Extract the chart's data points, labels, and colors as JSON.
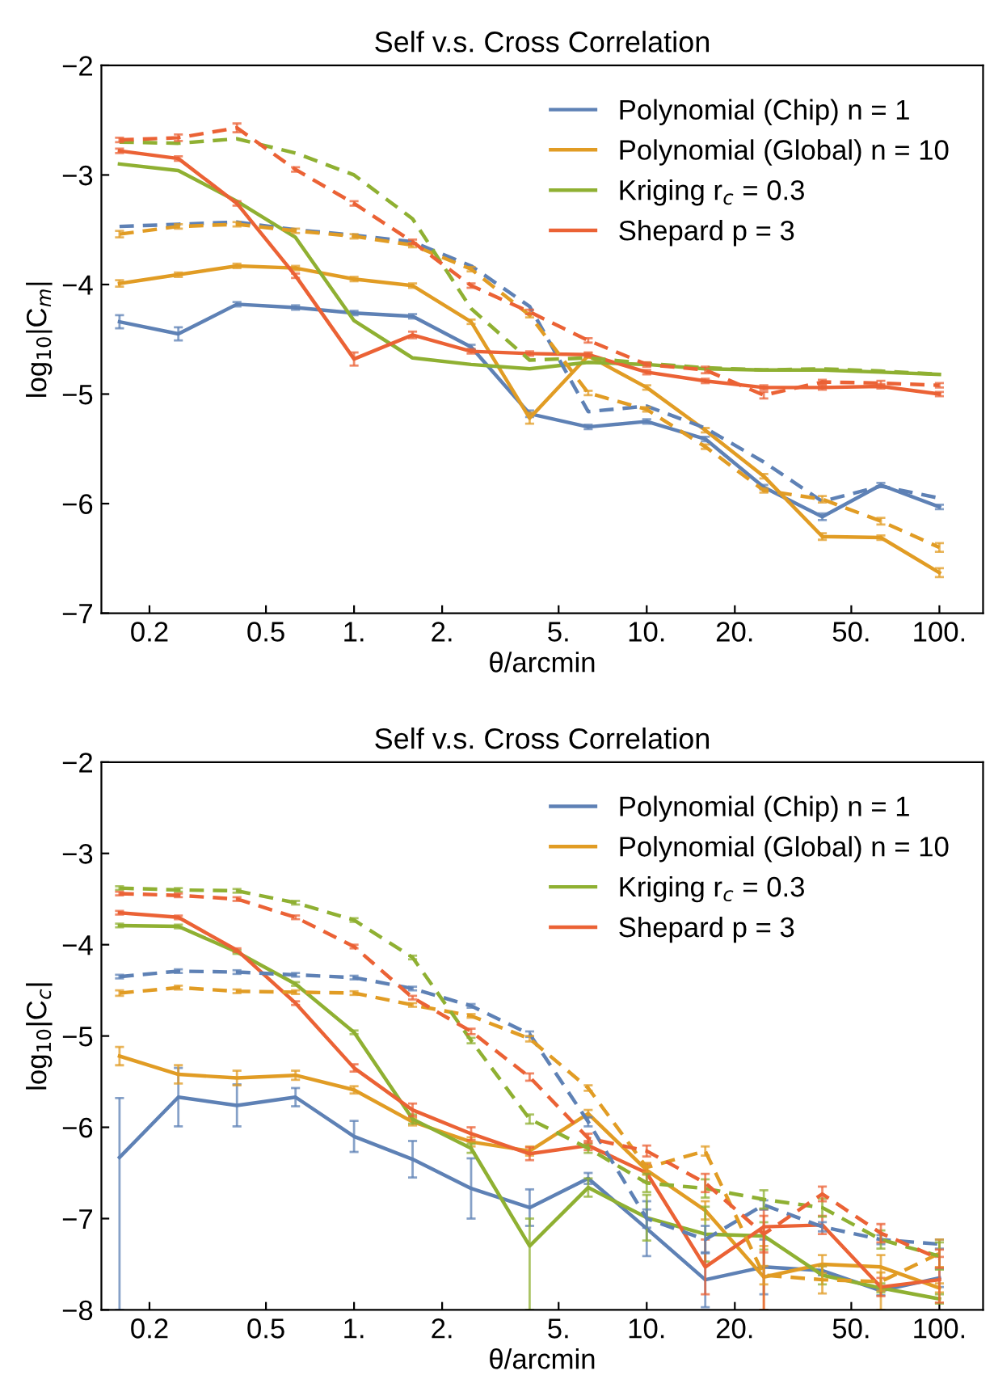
{
  "chart_data": [
    {
      "type": "line",
      "title": "Self v.s. Cross Correlation",
      "xlabel": "θ/arcmin",
      "ylabel": "log$_{10}$|C$_{m}$|",
      "x": [
        0.158,
        0.251,
        0.398,
        0.631,
        1,
        1.585,
        2.512,
        3.981,
        6.31,
        10,
        15.85,
        25.12,
        39.81,
        63.1,
        100
      ],
      "log": "x",
      "xlim": [
        0.137,
        141
      ],
      "ylim": [
        -7,
        -2
      ],
      "xticks": [
        {
          "value": 0.2,
          "label": "0.2"
        },
        {
          "value": 0.5,
          "label": "0.5"
        },
        {
          "value": 1,
          "label": "1."
        },
        {
          "value": 2,
          "label": "2."
        },
        {
          "value": 5,
          "label": "5."
        },
        {
          "value": 10,
          "label": "10."
        },
        {
          "value": 20,
          "label": "20."
        },
        {
          "value": 50,
          "label": "50."
        },
        {
          "value": 100,
          "label": "100."
        }
      ],
      "yticks": [
        {
          "value": -7,
          "label": "−7"
        },
        {
          "value": -6,
          "label": "−6"
        },
        {
          "value": -5,
          "label": "−5"
        },
        {
          "value": -4,
          "label": "−4"
        },
        {
          "value": -3,
          "label": "−3"
        },
        {
          "value": -2,
          "label": "−2"
        }
      ],
      "legend": "top right",
      "grid": false,
      "series": [
        {
          "name": "Polynomial (Chip) n = 1",
          "color": "#5e81b5",
          "line_style": "solid",
          "values": [
            -4.34,
            -4.45,
            -4.18,
            -4.21,
            -4.26,
            -4.29,
            -4.57,
            -5.18,
            -5.3,
            -5.25,
            -5.41,
            -5.85,
            -6.12,
            -5.83,
            -6.03
          ],
          "errors": [
            0.06,
            0.06,
            0.02,
            0.02,
            0.02,
            0.02,
            0.02,
            0.03,
            0.02,
            0.02,
            0.02,
            0.02,
            0.03,
            0.02,
            0.02
          ]
        },
        {
          "name": "Polynomial (Global) n = 10",
          "color": "#e19c24",
          "line_style": "solid",
          "values": [
            -3.99,
            -3.91,
            -3.83,
            -3.85,
            -3.95,
            -4.01,
            -4.34,
            -5.22,
            -4.65,
            -4.94,
            -5.33,
            -5.75,
            -6.3,
            -6.31,
            -6.63
          ],
          "errors": [
            0.03,
            0.02,
            0.02,
            0.02,
            0.02,
            0.02,
            0.02,
            0.05,
            0.02,
            0.02,
            0.02,
            0.02,
            0.03,
            0.02,
            0.04
          ]
        },
        {
          "name": "Kriging r$_{c}$ = 0.3",
          "color": "#8fb032",
          "line_style": "solid",
          "values": [
            -2.9,
            -2.96,
            -3.24,
            -3.57,
            -4.33,
            -4.67,
            -4.73,
            -4.77,
            -4.71,
            -4.73,
            -4.77,
            -4.78,
            -4.78,
            -4.8,
            -4.82
          ]
        },
        {
          "name": "Shepard p = 3",
          "color": "#eb6235",
          "line_style": "solid",
          "values": [
            -2.78,
            -2.85,
            -3.26,
            -3.92,
            -4.68,
            -4.46,
            -4.61,
            -4.63,
            -4.64,
            -4.8,
            -4.88,
            -4.94,
            -4.94,
            -4.93,
            -5.0
          ],
          "errors": [
            0.02,
            0.02,
            0.02,
            0.02,
            0.06,
            0.03,
            0.02,
            0.02,
            0.02,
            0.02,
            0.02,
            0.02,
            0.02,
            0.02,
            0.02
          ]
        },
        {
          "color": "#5e81b5",
          "line_style": "dashed",
          "values": [
            -3.47,
            -3.45,
            -3.43,
            -3.5,
            -3.55,
            -3.61,
            -3.83,
            -4.2,
            -5.16,
            -5.11,
            -5.31,
            -5.62,
            -5.98,
            -5.84,
            -5.95
          ]
        },
        {
          "color": "#e19c24",
          "line_style": "dashed",
          "values": [
            -3.54,
            -3.47,
            -3.45,
            -3.51,
            -3.56,
            -3.64,
            -3.86,
            -4.28,
            -4.99,
            -5.14,
            -5.48,
            -5.88,
            -5.96,
            -6.16,
            -6.4
          ],
          "errors": [
            0.03,
            0.02,
            0.02,
            0.02,
            0.02,
            0.02,
            0.02,
            0.02,
            0.02,
            0.02,
            0.02,
            0.02,
            0.03,
            0.03,
            0.04
          ]
        },
        {
          "color": "#8fb032",
          "line_style": "dashed",
          "values": [
            -2.7,
            -2.71,
            -2.67,
            -2.8,
            -3.0,
            -3.4,
            -4.22,
            -4.69,
            -4.67,
            -4.72,
            -4.76,
            -4.78,
            -4.77,
            -4.79,
            -4.82
          ]
        },
        {
          "color": "#eb6235",
          "line_style": "dashed",
          "values": [
            -2.68,
            -2.66,
            -2.57,
            -2.95,
            -3.26,
            -3.61,
            -4.01,
            -4.25,
            -4.51,
            -4.73,
            -4.78,
            -5.01,
            -4.89,
            -4.9,
            -4.92
          ],
          "errors": [
            0.02,
            0.03,
            0.04,
            0.02,
            0.02,
            0.02,
            0.02,
            0.02,
            0.02,
            0.02,
            0.03,
            0.03,
            0.02,
            0.02,
            0.02
          ]
        }
      ]
    },
    {
      "type": "line",
      "title": "Self v.s. Cross Correlation",
      "xlabel": "θ/arcmin",
      "ylabel": "log$_{10}$|C$_{c}$|",
      "x": [
        0.158,
        0.251,
        0.398,
        0.631,
        1,
        1.585,
        2.512,
        3.981,
        6.31,
        10,
        15.85,
        25.12,
        39.81,
        63.1,
        100
      ],
      "log": "x",
      "xlim": [
        0.137,
        141
      ],
      "ylim": [
        -8,
        -2
      ],
      "xticks": [
        {
          "value": 0.2,
          "label": "0.2"
        },
        {
          "value": 0.5,
          "label": "0.5"
        },
        {
          "value": 1,
          "label": "1."
        },
        {
          "value": 2,
          "label": "2."
        },
        {
          "value": 5,
          "label": "5."
        },
        {
          "value": 10,
          "label": "10."
        },
        {
          "value": 20,
          "label": "20."
        },
        {
          "value": 50,
          "label": "50."
        },
        {
          "value": 100,
          "label": "100."
        }
      ],
      "yticks": [
        {
          "value": -8,
          "label": "−8"
        },
        {
          "value": -7,
          "label": "−7"
        },
        {
          "value": -6,
          "label": "−6"
        },
        {
          "value": -5,
          "label": "−5"
        },
        {
          "value": -4,
          "label": "−4"
        },
        {
          "value": -3,
          "label": "−3"
        },
        {
          "value": -2,
          "label": "−2"
        }
      ],
      "legend": "top right",
      "grid": false,
      "series": [
        {
          "name": "Polynomial (Chip) n = 1",
          "color": "#5e81b5",
          "line_style": "solid",
          "values": [
            -6.33,
            -5.67,
            -5.76,
            -5.67,
            -6.1,
            -6.35,
            -6.67,
            -6.88,
            -6.56,
            -7.11,
            -7.67,
            -7.53,
            -7.57,
            -7.79,
            -7.65
          ],
          "errors": [
            [
              -8,
              -5.68
            ],
            0.32,
            0.23,
            0.1,
            0.17,
            0.2,
            0.33,
            0.2,
            0.06,
            0.3,
            0.3,
            0.3,
            0.05,
            0.05,
            0.1
          ]
        },
        {
          "name": "Polynomial (Global) n = 10",
          "color": "#e19c24",
          "line_style": "solid",
          "values": [
            -5.22,
            -5.42,
            -5.46,
            -5.43,
            -5.59,
            -5.94,
            -6.16,
            -6.26,
            -5.85,
            -6.47,
            -6.91,
            -7.64,
            -7.5,
            -7.53,
            -7.76
          ],
          "errors": [
            0.1,
            0.1,
            0.08,
            0.05,
            0.04,
            0.04,
            0.05,
            0.05,
            0.04,
            0.05,
            0.1,
            [
              -8,
              -7.3
            ],
            0.1,
            [
              -8,
              -7.4
            ],
            0.05
          ]
        },
        {
          "name": "Kriging r$_{c}$ = 0.3",
          "color": "#8fb032",
          "line_style": "solid",
          "values": [
            -3.79,
            -3.8,
            -4.08,
            -4.43,
            -4.96,
            -5.91,
            -6.23,
            -7.3,
            -6.66,
            -6.99,
            -7.17,
            -7.19,
            -7.62,
            -7.76,
            -7.88
          ],
          "errors": [
            0.02,
            0.02,
            0.02,
            0.02,
            0.02,
            0.05,
            0.05,
            [
              -8,
              -7.0
            ],
            0.1,
            0.25,
            0.3,
            0.15,
            0.1,
            0.05,
            0.05
          ]
        },
        {
          "name": "Shepard p = 3",
          "color": "#eb6235",
          "line_style": "solid",
          "values": [
            -3.65,
            -3.7,
            -4.06,
            -4.64,
            -5.35,
            -5.81,
            -6.07,
            -6.29,
            -6.2,
            -6.5,
            -7.53,
            -7.09,
            -7.07,
            -7.75,
            -7.67
          ],
          "errors": [
            0.02,
            0.02,
            0.02,
            0.02,
            0.04,
            0.07,
            0.07,
            0.07,
            0.05,
            0.1,
            0.3,
            [
              -8,
              -6.9
            ],
            0.1,
            0.1,
            0.25
          ]
        },
        {
          "color": "#5e81b5",
          "line_style": "dashed",
          "values": [
            -4.35,
            -4.29,
            -4.3,
            -4.33,
            -4.36,
            -4.48,
            -4.67,
            -4.98,
            -5.94,
            -7.0,
            -7.23,
            -6.85,
            -7.09,
            -7.23,
            -7.28
          ],
          "errors": [
            0.02,
            0.02,
            0.02,
            0.02,
            0.02,
            0.02,
            0.02,
            0.03,
            0.05,
            0.1,
            0.15,
            0.05,
            0.05,
            0.05,
            0.05
          ]
        },
        {
          "color": "#e19c24",
          "line_style": "dashed",
          "values": [
            -4.53,
            -4.47,
            -4.51,
            -4.52,
            -4.53,
            -4.66,
            -4.78,
            -5.03,
            -5.57,
            -6.44,
            -6.26,
            -7.62,
            -7.67,
            -7.69,
            -7.38
          ],
          "errors": [
            0.03,
            0.02,
            0.02,
            0.02,
            0.02,
            0.02,
            0.02,
            0.03,
            0.03,
            0.05,
            0.05,
            0.1,
            0.15,
            0.1,
            0.15
          ]
        },
        {
          "color": "#8fb032",
          "line_style": "dashed",
          "values": [
            -3.38,
            -3.4,
            -3.41,
            -3.54,
            -3.73,
            -4.14,
            -5.05,
            -5.91,
            -6.23,
            -6.61,
            -6.67,
            -6.79,
            -6.88,
            -7.23,
            -7.41
          ],
          "errors": [
            0.02,
            0.02,
            0.02,
            0.02,
            0.02,
            0.02,
            0.03,
            0.05,
            0.05,
            0.1,
            0.1,
            0.1,
            0.1,
            0.1,
            0.15
          ]
        },
        {
          "color": "#eb6235",
          "line_style": "dashed",
          "values": [
            -3.44,
            -3.46,
            -3.5,
            -3.7,
            -4.02,
            -4.58,
            -4.95,
            -5.45,
            -6.12,
            -6.26,
            -6.61,
            -7.17,
            -6.73,
            -7.16,
            -7.44
          ],
          "errors": [
            0.02,
            0.02,
            0.02,
            0.02,
            0.02,
            0.02,
            0.03,
            0.04,
            0.05,
            0.06,
            0.1,
            0.2,
            0.08,
            0.1,
            0.1
          ]
        }
      ]
    }
  ]
}
